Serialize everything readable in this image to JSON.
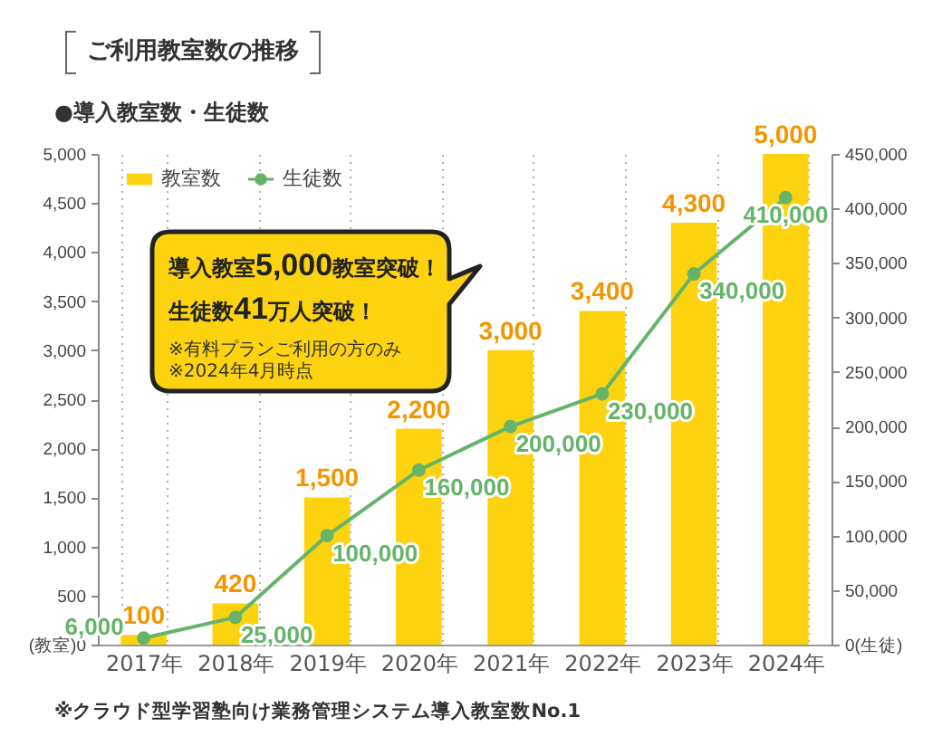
{
  "chart_data": {
    "type": "bar",
    "title": "ご利用教室数の推移",
    "subtitle": "●導入教室数・生徒数",
    "categories": [
      "2017年",
      "2018年",
      "2019年",
      "2020年",
      "2021年",
      "2022年",
      "2023年",
      "2024年"
    ],
    "series": [
      {
        "name": "教室数",
        "color": "#fcd30e",
        "values": [
          100,
          420,
          1500,
          2200,
          3000,
          3400,
          4300,
          5000
        ],
        "value_labels": [
          "100",
          "420",
          "1,500",
          "2,200",
          "3,000",
          "3,400",
          "4,300",
          "5,000"
        ]
      },
      {
        "name": "生徒数",
        "type": "line",
        "axis": "y2",
        "color": "#66b46a",
        "values": [
          6000,
          25000,
          100000,
          160000,
          200000,
          230000,
          340000,
          410000
        ],
        "value_labels": [
          "6,000",
          "25,000",
          "100,000",
          "160,000",
          "200,000",
          "230,000",
          "340,000",
          "410,000"
        ]
      }
    ],
    "ylim": [
      0,
      5000
    ],
    "yticks": [
      {
        "value": 0,
        "label": "(教室)0"
      },
      500,
      {
        "value": 1000,
        "label": "1,000"
      },
      {
        "value": 1500,
        "label": "1,500"
      },
      {
        "value": 2000,
        "label": "2,000"
      },
      {
        "value": 2500,
        "label": "2,500"
      },
      {
        "value": 3000,
        "label": "3,000"
      },
      {
        "value": 3500,
        "label": "3,500"
      },
      {
        "value": 4000,
        "label": "4,000"
      },
      {
        "value": 4500,
        "label": "4,500"
      },
      {
        "value": 5000,
        "label": "5,000"
      }
    ],
    "y2lim": [
      0,
      450000
    ],
    "y2ticks": [
      {
        "value": 0,
        "label": "0(生徒)"
      },
      {
        "value": 50000,
        "label": "50,000"
      },
      {
        "value": 100000,
        "label": "100,000"
      },
      {
        "value": 150000,
        "label": "150,000"
      },
      {
        "value": 200000,
        "label": "200,000"
      },
      {
        "value": 250000,
        "label": "250,000"
      },
      {
        "value": 300000,
        "label": "300,000"
      },
      {
        "value": 350000,
        "label": "350,000"
      },
      {
        "value": 400000,
        "label": "400,000"
      },
      {
        "value": 450000,
        "label": "450,000"
      }
    ],
    "grid": "x",
    "legend": "top left",
    "marker": "circle",
    "annotations": [
      "導入教室5,000教室突破！",
      "生徒数41万人突破！",
      "※有料プランご利用の方のみ",
      "※2024年4月時点",
      "※クラウド型学習塾向け業務管理システム導入教室数No.1"
    ]
  }
}
